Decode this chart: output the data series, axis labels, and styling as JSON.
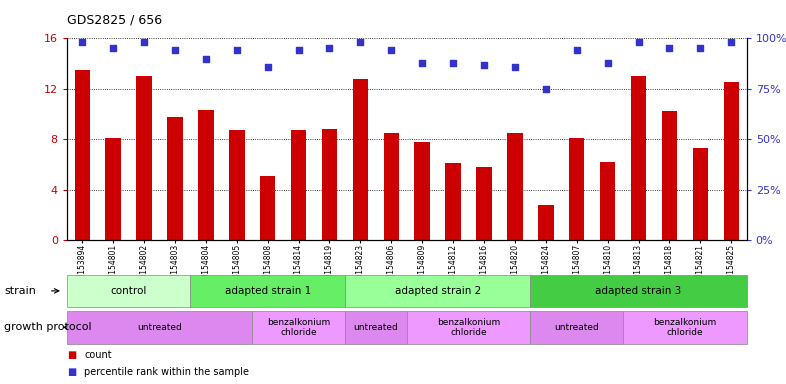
{
  "title": "GDS2825 / 656",
  "samples": [
    "GSM153894",
    "GSM154801",
    "GSM154802",
    "GSM154803",
    "GSM154804",
    "GSM154805",
    "GSM154808",
    "GSM154814",
    "GSM154819",
    "GSM154823",
    "GSM154806",
    "GSM154809",
    "GSM154812",
    "GSM154816",
    "GSM154820",
    "GSM154824",
    "GSM154807",
    "GSM154810",
    "GSM154813",
    "GSM154818",
    "GSM154821",
    "GSM154825"
  ],
  "counts": [
    13.5,
    8.1,
    13.0,
    9.8,
    10.3,
    8.7,
    5.1,
    8.7,
    8.8,
    12.8,
    8.5,
    7.8,
    6.1,
    5.8,
    8.5,
    2.8,
    8.1,
    6.2,
    13.0,
    10.2,
    7.3,
    12.5
  ],
  "percentiles_pct": [
    98,
    95,
    98,
    94,
    90,
    94,
    86,
    94,
    95,
    98,
    94,
    88,
    88,
    87,
    86,
    75,
    94,
    88,
    98,
    95,
    95,
    98
  ],
  "bar_color": "#CC0000",
  "dot_color": "#3333CC",
  "ylim_left": [
    0,
    16
  ],
  "ylim_right": [
    0,
    100
  ],
  "yticks_left": [
    0,
    4,
    8,
    12,
    16
  ],
  "yticks_right": [
    0,
    25,
    50,
    75,
    100
  ],
  "ytick_labels_right": [
    "0%",
    "25%",
    "50%",
    "75%",
    "100%"
  ],
  "strain_groups": [
    {
      "label": "control",
      "start": 0,
      "end": 4,
      "color": "#ccffcc"
    },
    {
      "label": "adapted strain 1",
      "start": 4,
      "end": 9,
      "color": "#66ee66"
    },
    {
      "label": "adapted strain 2",
      "start": 9,
      "end": 15,
      "color": "#99ff99"
    },
    {
      "label": "adapted strain 3",
      "start": 15,
      "end": 22,
      "color": "#44cc44"
    }
  ],
  "protocol_groups": [
    {
      "label": "untreated",
      "start": 0,
      "end": 6,
      "color": "#dd88ee"
    },
    {
      "label": "benzalkonium\nchloride",
      "start": 6,
      "end": 9,
      "color": "#ee99ff"
    },
    {
      "label": "untreated",
      "start": 9,
      "end": 11,
      "color": "#dd88ee"
    },
    {
      "label": "benzalkonium\nchloride",
      "start": 11,
      "end": 15,
      "color": "#ee99ff"
    },
    {
      "label": "untreated",
      "start": 15,
      "end": 18,
      "color": "#dd88ee"
    },
    {
      "label": "benzalkonium\nchloride",
      "start": 18,
      "end": 22,
      "color": "#ee99ff"
    }
  ],
  "strain_label": "strain",
  "protocol_label": "growth protocol",
  "legend_count_label": "count",
  "legend_pct_label": "percentile rank within the sample",
  "n_samples": 22,
  "bar_width": 0.5
}
